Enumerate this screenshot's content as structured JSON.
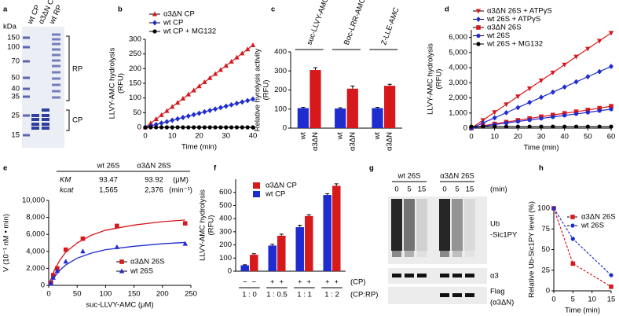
{
  "chart_data": [
    {
      "type": "line",
      "panel": "b",
      "y_label": [
        "LLVY-AMC hydrolysis",
        "(RFU)"
      ],
      "x_label": "Time (min)",
      "x": [
        0,
        2,
        4,
        6,
        8,
        10,
        12,
        14,
        16,
        18,
        20,
        22,
        24,
        26,
        28,
        30,
        32,
        34,
        36,
        38,
        40
      ],
      "xlim": [
        0,
        40
      ],
      "xticks": [
        0,
        10,
        20,
        30,
        40
      ],
      "ylim": [
        0,
        300
      ],
      "yticks": [
        0,
        50,
        100,
        150,
        200,
        250,
        300
      ],
      "series": [
        {
          "name": "α3ΔN CP",
          "color": "#d7191c",
          "marker": "triangle",
          "values": [
            0,
            14,
            28,
            42,
            56,
            70,
            84,
            98,
            112,
            126,
            140,
            154,
            168,
            182,
            196,
            210,
            224,
            238,
            252,
            266,
            280
          ]
        },
        {
          "name": "wt CP",
          "color": "#1f2ccf",
          "marker": "diamond",
          "values": [
            0,
            4.8,
            9.6,
            14.4,
            19.2,
            24,
            28.8,
            33.6,
            38.4,
            43.2,
            48,
            52.8,
            57.6,
            62.4,
            67.2,
            72,
            76.8,
            81.6,
            86.4,
            91.2,
            96
          ]
        },
        {
          "name": "wt CP + MG132",
          "color": "#000000",
          "marker": "circle",
          "values": [
            0,
            0,
            0,
            0,
            0,
            0,
            0,
            0,
            0,
            0,
            0,
            0,
            0,
            0,
            0,
            0,
            0,
            0,
            0,
            0,
            0
          ]
        }
      ]
    },
    {
      "type": "bar",
      "panel": "c",
      "y_label": [
        "Relative hyrolysis activity",
        "(RFU)"
      ],
      "categories": [
        "suc-LLVY-AMC",
        "Boc-LRR-AMC",
        "Z-LLE-AMC"
      ],
      "ylim": [
        0,
        400
      ],
      "yticks": [
        0,
        100,
        200,
        300,
        400
      ],
      "series": [
        {
          "name": "wt",
          "color": "#1f2ccf",
          "values": [
            105,
            103,
            105
          ],
          "errors": [
            4,
            4,
            4
          ]
        },
        {
          "name": "α3ΔN",
          "color": "#d7191c",
          "values": [
            305,
            207,
            222
          ],
          "errors": [
            12,
            14,
            8
          ]
        }
      ]
    },
    {
      "type": "line",
      "panel": "d",
      "y_label": [
        "LLVY-AMC hydrolysis",
        "(RFU)"
      ],
      "x_label": "Time (min)",
      "x": [
        0,
        5,
        10,
        15,
        20,
        25,
        30,
        35,
        40,
        45,
        50,
        55,
        60
      ],
      "xlim": [
        0,
        60
      ],
      "xticks": [
        0,
        10,
        20,
        30,
        40,
        50,
        60
      ],
      "ylim": [
        0,
        6500
      ],
      "yticks": [
        0,
        {
          "value": 1000,
          "label": "1,000"
        },
        {
          "value": 2000,
          "label": "2,000"
        },
        {
          "value": 3000,
          "label": "3,000"
        },
        {
          "value": 4000,
          "label": "4,000"
        },
        {
          "value": 5000,
          "label": "5,000"
        },
        {
          "value": 6000,
          "label": "6,000"
        }
      ],
      "series": [
        {
          "name": "α3ΔN 26S + ATPγS",
          "color": "#d7191c",
          "marker": "triangle-down",
          "values": [
            0,
            525,
            1050,
            1575,
            2100,
            2625,
            3150,
            3675,
            4200,
            4725,
            5250,
            5775,
            6300
          ]
        },
        {
          "name": "wt 26S + ATPγS",
          "color": "#1f2ccf",
          "marker": "diamond",
          "values": [
            0,
            340,
            680,
            1020,
            1360,
            1700,
            2040,
            2380,
            2720,
            3060,
            3400,
            3740,
            4080
          ]
        },
        {
          "name": "α3ΔN 26S",
          "color": "#d7191c",
          "marker": "square",
          "values": [
            0,
            150,
            280,
            400,
            520,
            640,
            760,
            870,
            980,
            1090,
            1200,
            1320,
            1450
          ]
        },
        {
          "name": "wt 26S",
          "color": "#1f2ccf",
          "marker": "circle",
          "values": [
            0,
            120,
            230,
            340,
            440,
            540,
            640,
            740,
            840,
            940,
            1040,
            1150,
            1250
          ]
        },
        {
          "name": "wt 26S + MG132",
          "color": "#000000",
          "marker": "circle",
          "values": [
            100,
            100,
            100,
            100,
            100,
            100,
            100,
            100,
            100,
            100,
            100,
            100,
            100
          ]
        }
      ]
    },
    {
      "type": "scatter",
      "panel": "e",
      "y_label": [
        "V (10⁻¹ nM • min)"
      ],
      "x_label": "suc-LLVY-AMC (μM)",
      "xlim": [
        0,
        250
      ],
      "xticks": [
        0,
        50,
        100,
        150,
        200,
        250
      ],
      "ylim": [
        0,
        10000
      ],
      "yticks": [
        0,
        {
          "value": 2000,
          "label": "2,000"
        },
        {
          "value": 4000,
          "label": "4,000"
        },
        {
          "value": 6000,
          "label": "6,000"
        },
        {
          "value": 8000,
          "label": "8,000"
        },
        {
          "value": 10000,
          "label": "10,000"
        }
      ],
      "table": {
        "columns": [
          "wt 26S",
          "α3ΔN 26S"
        ],
        "rows": [
          [
            "KM",
            "93.47",
            "93.92",
            "(μM)"
          ],
          [
            "kcat",
            "1,565",
            "2,376",
            "(min⁻¹)"
          ]
        ]
      },
      "series": [
        {
          "name": "α3ΔN 26S",
          "color": "#d7191c",
          "marker": "square",
          "x": [
            4,
            8,
            15,
            30,
            60,
            120,
            240
          ],
          "values": [
            300,
            1200,
            2000,
            4200,
            5500,
            7000,
            7300
          ],
          "fit": {
            "x": [
              0,
              10,
              20,
              30,
              50,
              75,
              100,
              150,
              200,
              240
            ],
            "values": [
              0,
              1800,
              3000,
              3900,
              5000,
              5900,
              6500,
              7100,
              7500,
              7700
            ]
          }
        },
        {
          "name": "wt 26S",
          "color": "#1f2ccf",
          "marker": "triangle",
          "x": [
            4,
            8,
            15,
            30,
            60,
            120,
            240
          ],
          "values": [
            200,
            900,
            1700,
            2800,
            4000,
            4500,
            4900
          ],
          "fit": {
            "x": [
              0,
              10,
              20,
              30,
              50,
              75,
              100,
              150,
              200,
              240
            ],
            "values": [
              0,
              1000,
              1800,
              2400,
              3200,
              3800,
              4200,
              4600,
              4900,
              5050
            ]
          }
        }
      ]
    },
    {
      "type": "bar",
      "panel": "f",
      "y_label": [
        "LLVY-AMC hydrolysis",
        "(RFU)"
      ],
      "categories": [
        "1 : 0",
        "1 : 0.5",
        "1 : 1",
        "1 : 2"
      ],
      "category_label": "(CP:RP)",
      "condition_row": {
        "label": "(CP)",
        "signs": [
          "−",
          "−",
          "+",
          "+",
          "+",
          "+",
          "+",
          "+"
        ]
      },
      "ylim": [
        0,
        700
      ],
      "yticks": [
        0,
        100,
        200,
        300,
        400,
        500,
        600
      ],
      "series": [
        {
          "name": "α3ΔN CP",
          "color": "#d7191c",
          "values": [
            125,
            270,
            420,
            650
          ],
          "errors": [
            8,
            12,
            10,
            15
          ]
        },
        {
          "name": "wt CP",
          "color": "#1f2ccf",
          "values": [
            45,
            195,
            335,
            580
          ],
          "errors": [
            4,
            10,
            15,
            10
          ]
        }
      ]
    },
    {
      "type": "line",
      "panel": "h",
      "y_label": [
        "Relative Ub-Sic1PY level (%)"
      ],
      "x_label": "Time (min)",
      "x": [
        0,
        5,
        15
      ],
      "xlim": [
        0,
        15
      ],
      "xticks": [
        0,
        5,
        10,
        15
      ],
      "ylim": [
        0,
        100
      ],
      "yticks": [
        0,
        25,
        50,
        75,
        100
      ],
      "series": [
        {
          "name": "α3ΔN 26S",
          "color": "#d7191c",
          "marker": "square",
          "dashed": true,
          "values": [
            100,
            33,
            5
          ]
        },
        {
          "name": "wt 26S",
          "color": "#1f2ccf",
          "marker": "circle",
          "dashed": true,
          "values": [
            100,
            63,
            19
          ]
        }
      ]
    }
  ],
  "gels": [
    {
      "panel": "a",
      "kda_label": "kDa",
      "markers": [
        150,
        100,
        70,
        50,
        40,
        35,
        25,
        15
      ],
      "lanes": [
        "wt CP",
        "α3ΔN CP",
        "wt RP"
      ],
      "brackets": [
        "RP",
        "CP"
      ]
    },
    {
      "panel": "g",
      "groups": [
        "wt 26S",
        "α3ΔN 26S"
      ],
      "times": [
        0,
        5,
        15,
        0,
        5,
        15
      ],
      "time_unit": "(min)",
      "labels": [
        "Ub",
        "-Sic1PY",
        "α3",
        "Flag",
        "(α3ΔN)"
      ]
    }
  ]
}
